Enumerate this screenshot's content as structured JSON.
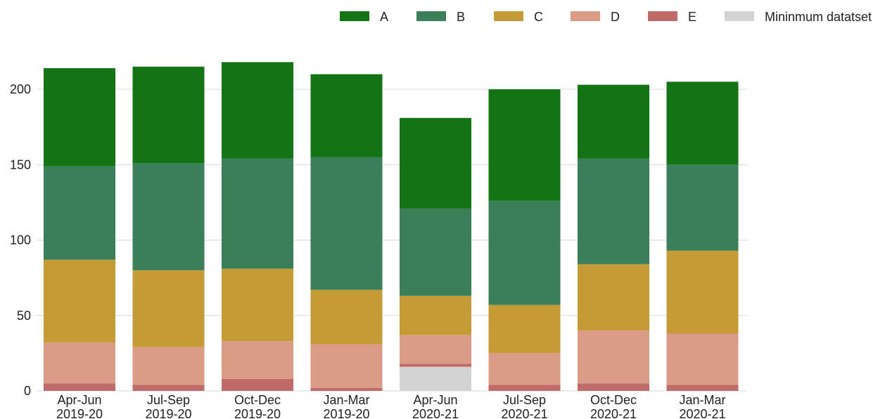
{
  "chart_data": {
    "type": "bar",
    "stacked": true,
    "categories": [
      [
        "Apr-Jun",
        "2019-20"
      ],
      [
        "Jul-Sep",
        "2019-20"
      ],
      [
        "Oct-Dec",
        "2019-20"
      ],
      [
        "Jan-Mar",
        "2019-20"
      ],
      [
        "Apr-Jun",
        "2020-21"
      ],
      [
        "Jul-Sep",
        "2020-21"
      ],
      [
        "Oct-Dec",
        "2020-21"
      ],
      [
        "Jan-Mar",
        "2020-21"
      ]
    ],
    "series": [
      {
        "name": "Mininmum datatset",
        "color": "#d3d3d3",
        "values": [
          0,
          0,
          0,
          0,
          16,
          0,
          0,
          0
        ]
      },
      {
        "name": "E",
        "color": "#c06a6a",
        "values": [
          5,
          4,
          8,
          2,
          2,
          4,
          5,
          4
        ]
      },
      {
        "name": "D",
        "color": "#dc9b87",
        "values": [
          27,
          25,
          25,
          29,
          19,
          21,
          35,
          34
        ]
      },
      {
        "name": "C",
        "color": "#c49b36",
        "values": [
          55,
          51,
          48,
          36,
          26,
          32,
          44,
          55
        ]
      },
      {
        "name": "B",
        "color": "#3a7f5a",
        "values": [
          62,
          71,
          73,
          88,
          58,
          69,
          70,
          57
        ]
      },
      {
        "name": "A",
        "color": "#127412",
        "values": [
          65,
          64,
          64,
          55,
          60,
          74,
          49,
          55
        ]
      }
    ],
    "legend_order": [
      "A",
      "B",
      "C",
      "D",
      "E",
      "Mininmum datatset"
    ],
    "yticks": [
      0,
      50,
      100,
      150,
      200
    ],
    "ylim": [
      0,
      220
    ],
    "grid": true,
    "legend_position": "top-right",
    "title": "",
    "xlabel": "",
    "ylabel": ""
  }
}
